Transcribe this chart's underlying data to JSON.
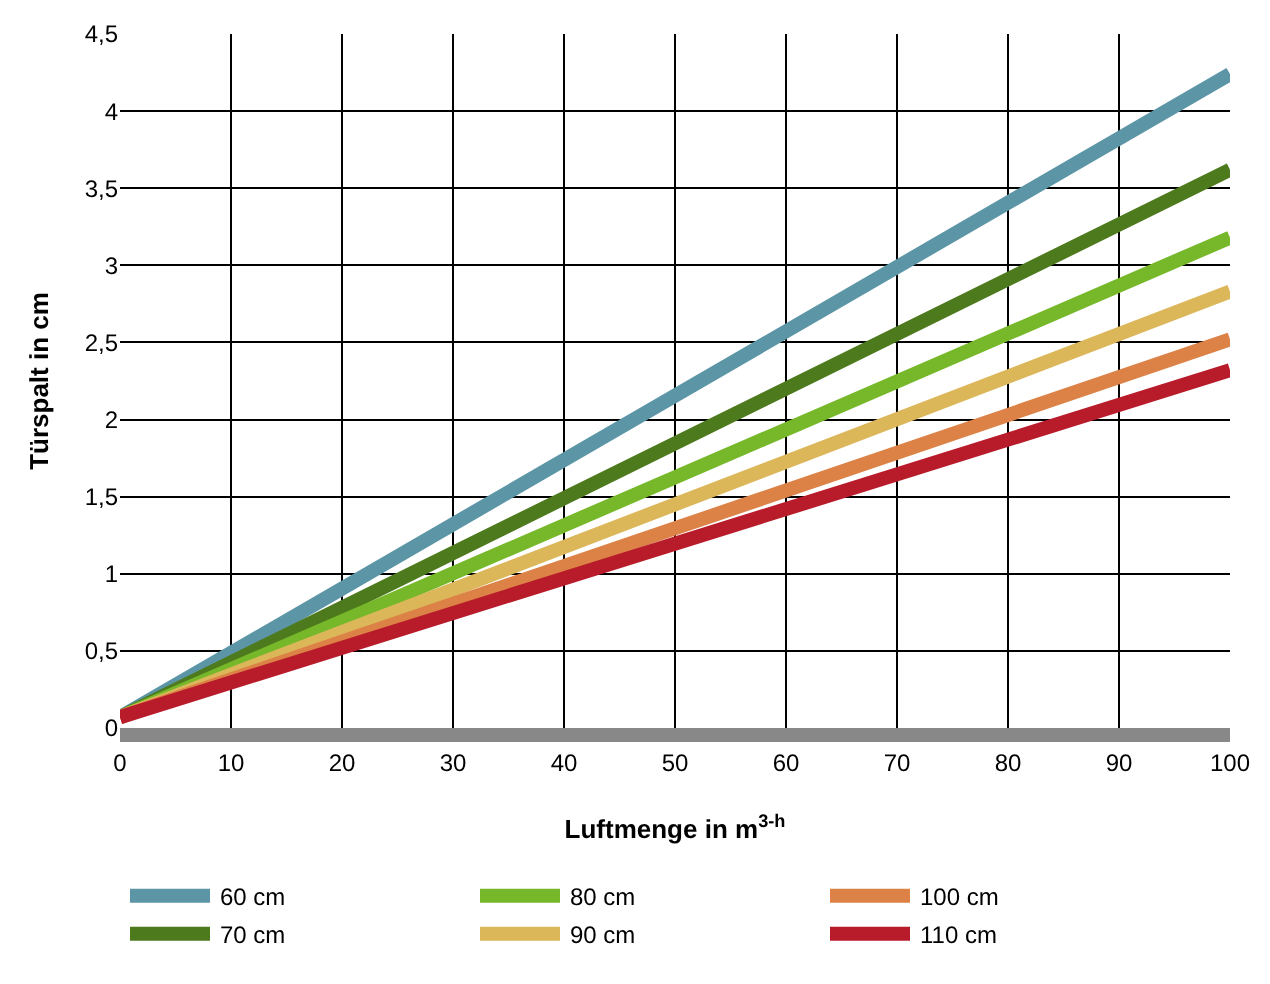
{
  "chart_data": {
    "type": "line",
    "xlabel": "Luftmenge in m$^{3-h}$",
    "ylabel": "Türspalt in cm",
    "x": [
      0,
      100
    ],
    "series": [
      {
        "name": "60 cm",
        "color": "#5b95a6",
        "values": [
          0.07,
          4.24
        ]
      },
      {
        "name": "70 cm",
        "color": "#4e7a1e",
        "values": [
          0.07,
          3.62
        ]
      },
      {
        "name": "80 cm",
        "color": "#76b82a",
        "values": [
          0.07,
          3.18
        ]
      },
      {
        "name": "90 cm",
        "color": "#dcb75a",
        "values": [
          0.07,
          2.83
        ]
      },
      {
        "name": "100 cm",
        "color": "#dc8246",
        "values": [
          0.07,
          2.52
        ]
      },
      {
        "name": "110 cm",
        "color": "#b81c2b",
        "values": [
          0.07,
          2.32
        ]
      }
    ],
    "xlim": [
      0,
      100
    ],
    "xticks": [
      0,
      10,
      20,
      30,
      40,
      50,
      60,
      70,
      80,
      90,
      100
    ],
    "ylim": [
      0,
      4.5
    ],
    "yticks": [
      0,
      {
        "value": 0.5,
        "label": "0,5"
      },
      1,
      {
        "value": 1.5,
        "label": "1,5"
      },
      2,
      {
        "value": 2.5,
        "label": "2,5"
      },
      3,
      {
        "value": 3.5,
        "label": "3,5"
      },
      4,
      {
        "value": 4.5,
        "label": "4,5"
      }
    ],
    "grid": true,
    "legend": "bottom",
    "marker": "none",
    "line_style": "solid"
  }
}
